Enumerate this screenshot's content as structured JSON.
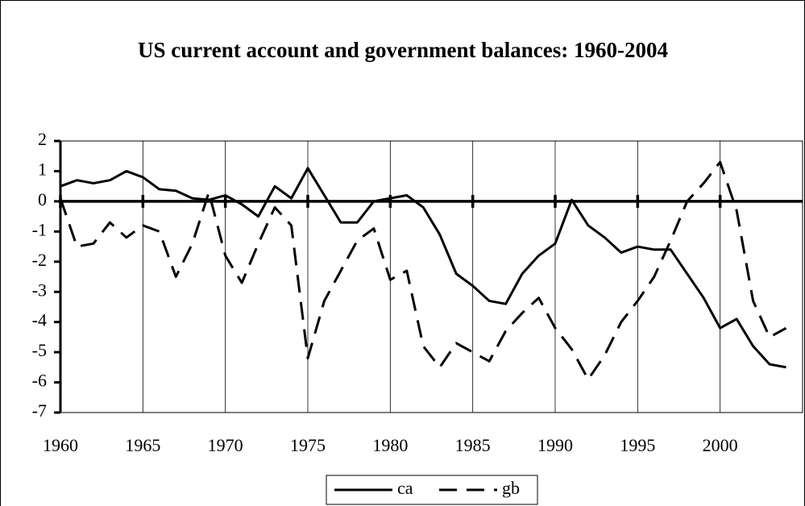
{
  "chart_data": {
    "type": "line",
    "title": "US current account and government balances: 1960-2004",
    "x": [
      1960,
      1961,
      1962,
      1963,
      1964,
      1965,
      1966,
      1967,
      1968,
      1969,
      1970,
      1971,
      1972,
      1973,
      1974,
      1975,
      1976,
      1977,
      1978,
      1979,
      1980,
      1981,
      1982,
      1983,
      1984,
      1985,
      1986,
      1987,
      1988,
      1989,
      1990,
      1991,
      1992,
      1993,
      1994,
      1995,
      1996,
      1997,
      1998,
      1999,
      2000,
      2001,
      2002,
      2003,
      2004
    ],
    "series": [
      {
        "name": "ca",
        "color": "#000000",
        "dash": false,
        "values": [
          0.5,
          0.7,
          0.6,
          0.7,
          1.0,
          0.8,
          0.4,
          0.35,
          0.1,
          0.05,
          0.2,
          -0.1,
          -0.5,
          0.5,
          0.1,
          1.1,
          0.2,
          -0.7,
          -0.7,
          0.0,
          0.1,
          0.2,
          -0.2,
          -1.1,
          -2.4,
          -2.8,
          -3.3,
          -3.4,
          -2.4,
          -1.8,
          -1.4,
          0.05,
          -0.8,
          -1.2,
          -1.7,
          -1.5,
          -1.6,
          -1.6,
          -2.4,
          -3.2,
          -4.2,
          -3.9,
          -4.8,
          -5.4,
          -5.5
        ]
      },
      {
        "name": "gb",
        "color": "#000000",
        "dash": true,
        "values": [
          0.1,
          -1.5,
          -1.4,
          -0.7,
          -1.2,
          -0.8,
          -1.0,
          -2.5,
          -1.4,
          0.3,
          -1.8,
          -2.7,
          -1.4,
          -0.2,
          -0.8,
          -5.2,
          -3.3,
          -2.3,
          -1.3,
          -0.9,
          -2.6,
          -2.3,
          -4.8,
          -5.5,
          -4.7,
          -5.0,
          -5.3,
          -4.3,
          -3.7,
          -3.2,
          -4.2,
          -4.9,
          -5.9,
          -5.1,
          -4.0,
          -3.3,
          -2.5,
          -1.3,
          0.0,
          0.6,
          1.3,
          -0.3,
          -3.3,
          -4.5,
          -4.2
        ]
      }
    ],
    "xlim": [
      1960,
      2005
    ],
    "xticks": [
      1960,
      1965,
      1970,
      1975,
      1980,
      1985,
      1990,
      1995,
      2000
    ],
    "ylim": [
      -7,
      2
    ],
    "yticks": [
      -7,
      -6,
      -5,
      -4,
      -3,
      -2,
      -1,
      0,
      1,
      2
    ],
    "grid": true,
    "legend": "bottom"
  }
}
